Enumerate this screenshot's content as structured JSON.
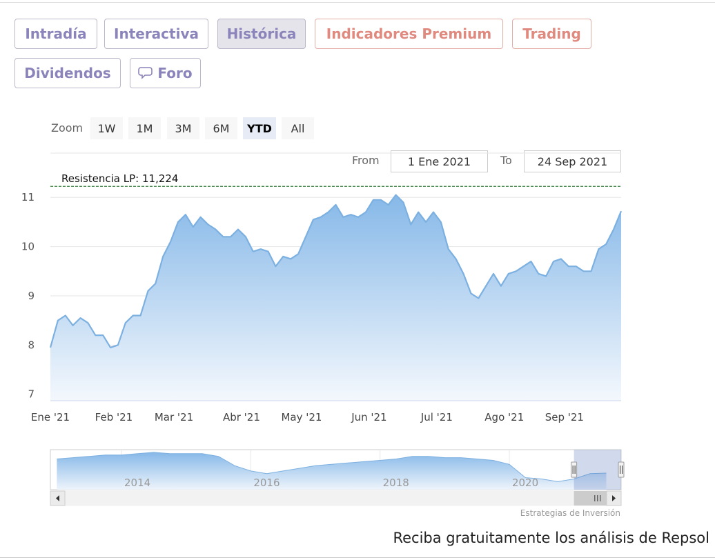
{
  "tabs": [
    {
      "label": "Intradía"
    },
    {
      "label": "Interactiva"
    },
    {
      "label": "Histórica"
    },
    {
      "label": "Indicadores Premium"
    },
    {
      "label": "Trading"
    },
    {
      "label": "Dividendos"
    },
    {
      "label": "Foro"
    }
  ],
  "zoom": {
    "label": "Zoom",
    "buttons": [
      "1W",
      "1M",
      "3M",
      "6M",
      "YTD",
      "All"
    ]
  },
  "range": {
    "from_label": "From",
    "from": "1 Ene 2021",
    "to_label": "To",
    "to": "24 Sep 2021"
  },
  "credits": "Estrategias de Inversión",
  "footer": "Reciba gratuitamente los análisis de Repsol",
  "chart_data": {
    "type": "area",
    "color": "#7cb0e0",
    "categories": [
      "Ene '21",
      null,
      null,
      null,
      null,
      null,
      null,
      null,
      null,
      "Feb '21",
      null,
      null,
      null,
      null,
      null,
      null,
      null,
      "Mar '21",
      null,
      null,
      null,
      null,
      null,
      null,
      null,
      null,
      "Abr '21",
      null,
      null,
      null,
      null,
      null,
      null,
      null,
      "May '21",
      null,
      null,
      null,
      null,
      null,
      null,
      null,
      null,
      "Jun '21",
      null,
      null,
      null,
      null,
      null,
      null,
      null,
      null,
      "Jul '21",
      null,
      null,
      null,
      null,
      null,
      null,
      null,
      null,
      "Ago '21",
      null,
      null,
      null,
      null,
      null,
      null,
      null,
      "Sep '21",
      null,
      null,
      null,
      null,
      null,
      null,
      null
    ],
    "values": [
      7.95,
      8.5,
      8.6,
      8.4,
      8.55,
      8.45,
      8.2,
      8.2,
      7.95,
      8.0,
      8.45,
      8.6,
      8.6,
      9.1,
      9.25,
      9.8,
      10.1,
      10.5,
      10.65,
      10.4,
      10.6,
      10.45,
      10.35,
      10.2,
      10.2,
      10.35,
      10.2,
      9.9,
      9.95,
      9.9,
      9.6,
      9.8,
      9.75,
      9.85,
      10.2,
      10.55,
      10.6,
      10.7,
      10.85,
      10.6,
      10.65,
      10.6,
      10.7,
      10.95,
      10.95,
      10.85,
      11.05,
      10.9,
      10.45,
      10.7,
      10.5,
      10.7,
      10.5,
      9.95,
      9.75,
      9.45,
      9.05,
      8.95,
      9.2,
      9.45,
      9.2,
      9.45,
      9.5,
      9.6,
      9.7,
      9.45,
      9.4,
      9.7,
      9.75,
      9.6,
      9.6,
      9.5,
      9.5,
      9.95,
      10.05,
      10.35,
      10.72
    ],
    "ylim": [
      6.87,
      11.9
    ],
    "yticks": [
      7,
      8,
      9,
      10,
      11
    ],
    "grid": true,
    "plot_lines": [
      {
        "value": 11.224,
        "label": "Resistencia LP: 11,224",
        "color": "#2e7d32"
      }
    ]
  },
  "navigator": {
    "xlim": [
      2012.9,
      2021.73
    ],
    "xticks": [
      2014,
      2016,
      2018,
      2020
    ],
    "ylim": [
      4,
      19
    ],
    "selection": [
      2021,
      2021.73
    ],
    "x": [
      2013,
      2013.25,
      2013.5,
      2013.75,
      2014,
      2014.25,
      2014.5,
      2014.75,
      2015,
      2015.25,
      2015.5,
      2015.75,
      2016,
      2016.25,
      2016.5,
      2016.75,
      2017,
      2017.25,
      2017.5,
      2017.75,
      2018,
      2018.25,
      2018.5,
      2018.75,
      2019,
      2019.25,
      2019.5,
      2019.75,
      2020,
      2020.25,
      2020.5,
      2020.75,
      2021,
      2021.25,
      2021.5
    ],
    "values": [
      15.5,
      16,
      16.5,
      17,
      17,
      17.5,
      18,
      17.5,
      17.5,
      17.5,
      16.5,
      13,
      11,
      10,
      11,
      12,
      13,
      13.5,
      14,
      14.5,
      15,
      15.5,
      16.5,
      16.5,
      16,
      16,
      15.5,
      15,
      13.5,
      8.5,
      8,
      7,
      8,
      10,
      10.2
    ]
  }
}
